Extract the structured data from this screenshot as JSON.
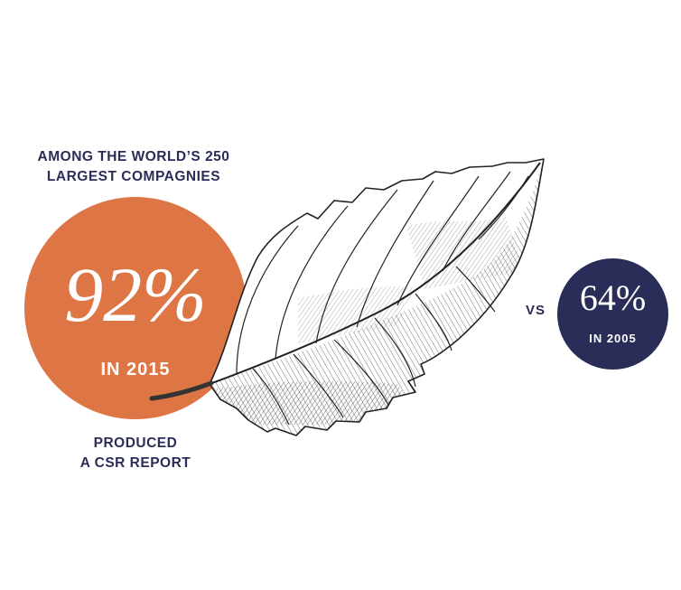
{
  "headline": {
    "line1": "AMONG THE WORLD’S 250",
    "line2": "LARGEST COMPAGNIES"
  },
  "main_stat": {
    "value": "92%",
    "year": "IN 2015",
    "color": "#de7545"
  },
  "caption": {
    "line1": "PRODUCED",
    "line2": "A CSR REPORT"
  },
  "comparison": {
    "connector": "VS",
    "value": "64%",
    "year": "IN 2005",
    "color": "#2a2d57"
  },
  "text_color": "#2a2d57",
  "illustration": "leaf-sketch"
}
